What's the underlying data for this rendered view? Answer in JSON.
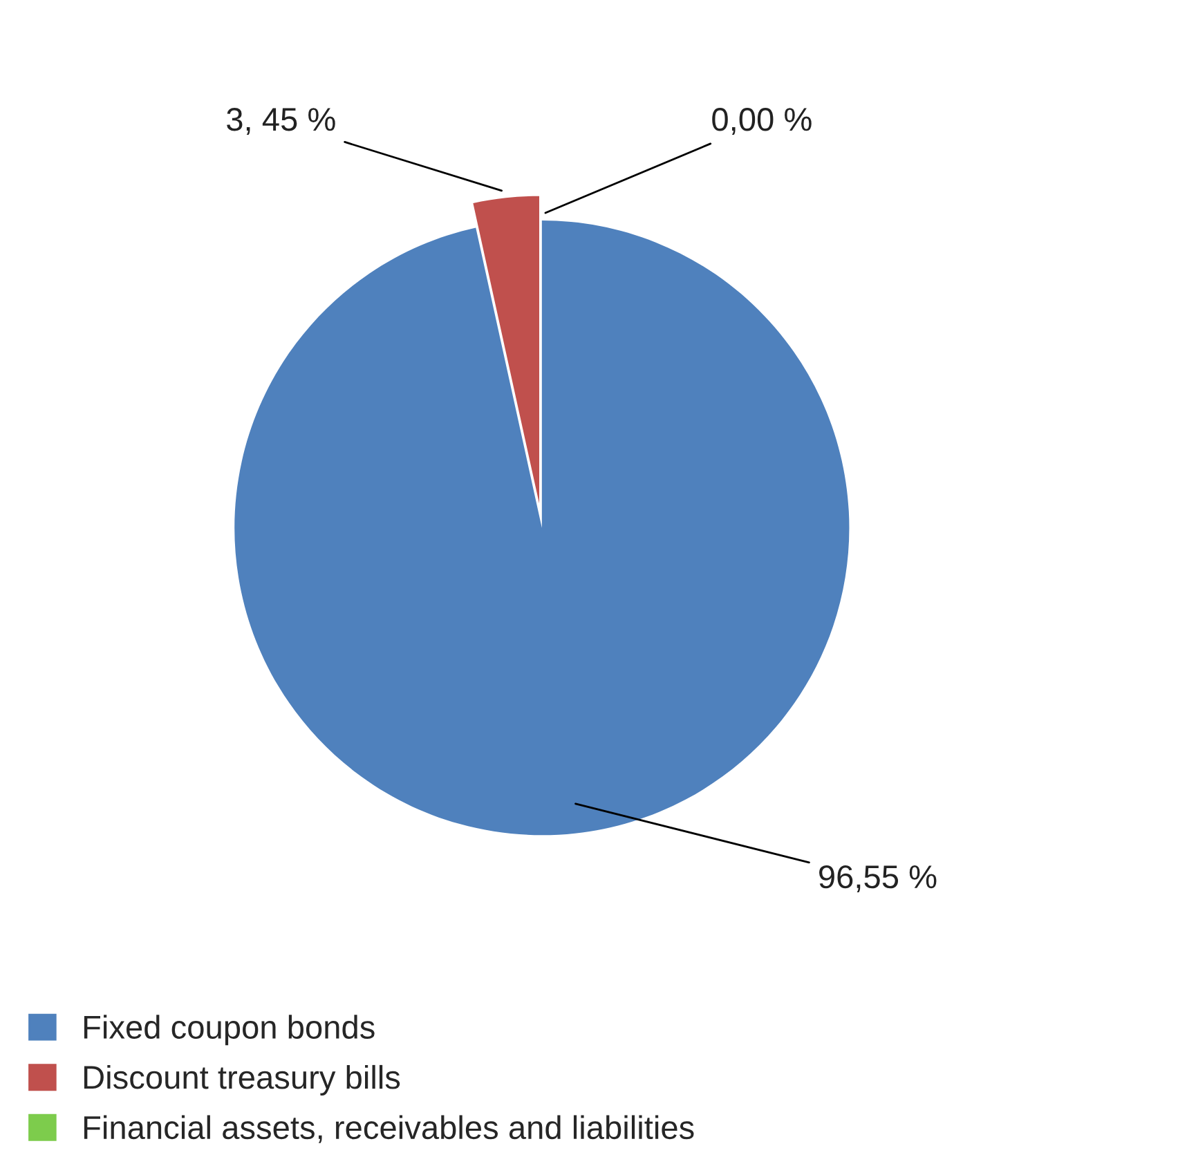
{
  "chart_data": {
    "type": "pie",
    "categories": [
      "Fixed coupon bonds",
      "Discount treasury bills",
      "Financial assets, receivables and liabilities"
    ],
    "values": [
      96.55,
      3.45,
      0.0
    ],
    "colors": [
      "#4f81bd",
      "#c0504d",
      "#7dcc4c"
    ],
    "value_labels": [
      "96,55 %",
      "3, 45 %",
      "0,00 %"
    ],
    "legend": "bottom left"
  }
}
